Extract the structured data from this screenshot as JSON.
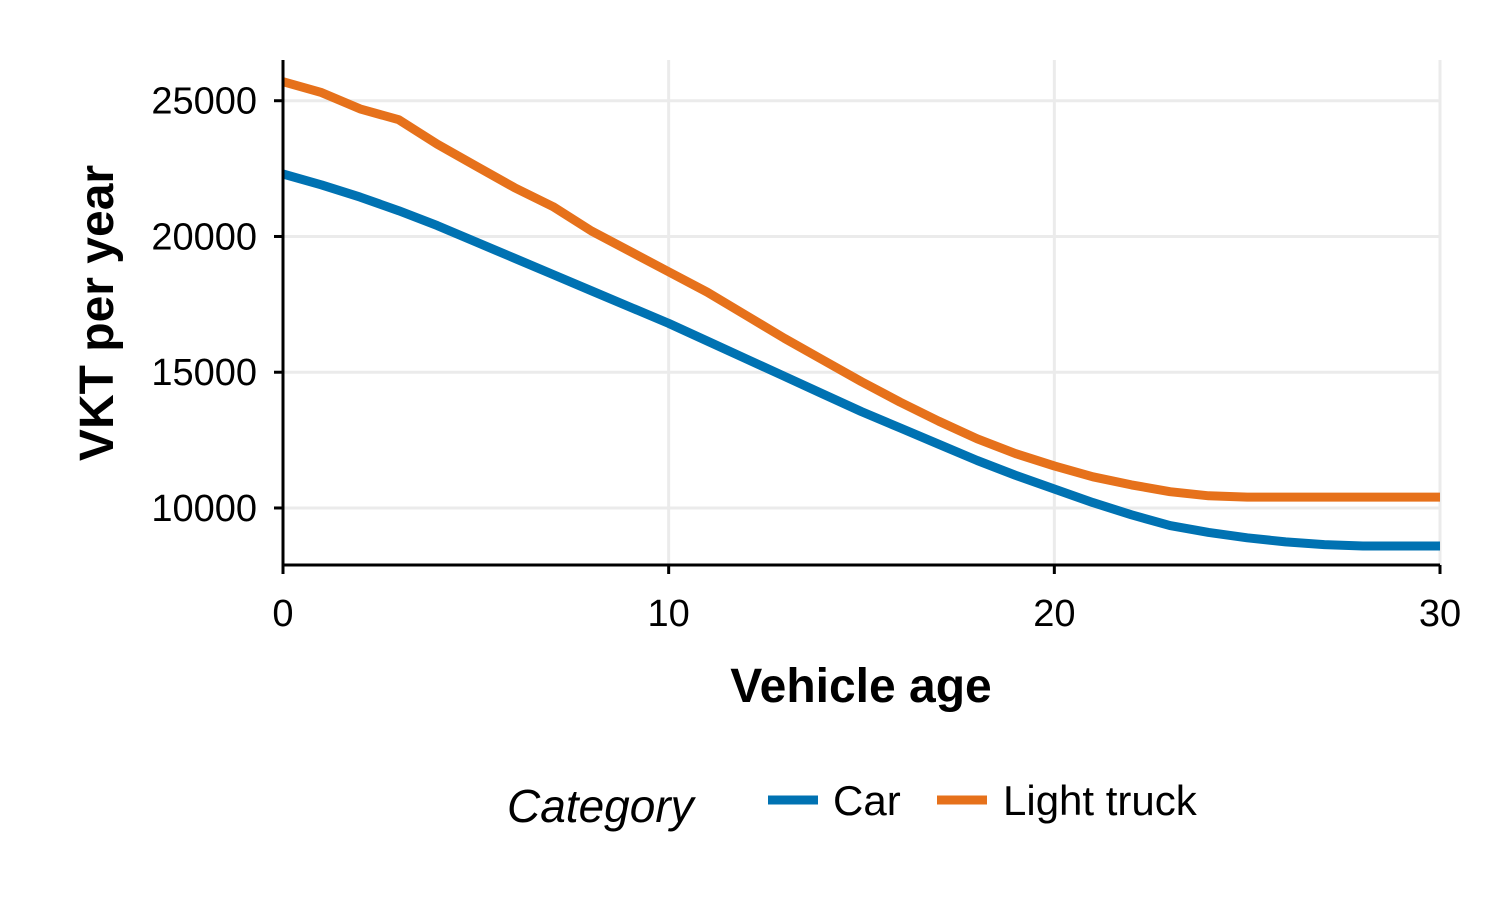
{
  "chart_data": {
    "type": "line",
    "title": "",
    "xlabel": "Vehicle age",
    "ylabel": "VKT per year",
    "xlim": [
      0,
      30
    ],
    "ylim": [
      7900,
      26500
    ],
    "xticks": [
      0,
      10,
      20,
      30
    ],
    "yticks": [
      10000,
      15000,
      20000,
      25000
    ],
    "grid": true,
    "legend": {
      "title": "Category",
      "position": "bottom"
    },
    "x": [
      0,
      1,
      2,
      3,
      4,
      5,
      6,
      7,
      8,
      9,
      10,
      11,
      12,
      13,
      14,
      15,
      16,
      17,
      18,
      19,
      20,
      21,
      22,
      23,
      24,
      25,
      26,
      27,
      28,
      29,
      30
    ],
    "series": [
      {
        "name": "Car",
        "color": "#0072B2",
        "values": [
          22300,
          21900,
          21450,
          20950,
          20400,
          19800,
          19200,
          18600,
          18000,
          17400,
          16800,
          16150,
          15500,
          14850,
          14200,
          13550,
          12950,
          12350,
          11750,
          11200,
          10700,
          10200,
          9750,
          9350,
          9100,
          8900,
          8750,
          8650,
          8600,
          8600,
          8600
        ]
      },
      {
        "name": "Light truck",
        "color": "#E6711B",
        "values": [
          25700,
          25300,
          24700,
          24300,
          23400,
          22600,
          21800,
          21100,
          20200,
          19450,
          18700,
          17950,
          17100,
          16250,
          15450,
          14650,
          13900,
          13200,
          12550,
          12000,
          11550,
          11150,
          10850,
          10600,
          10450,
          10400,
          10400,
          10400,
          10400,
          10400,
          10400
        ]
      }
    ]
  }
}
